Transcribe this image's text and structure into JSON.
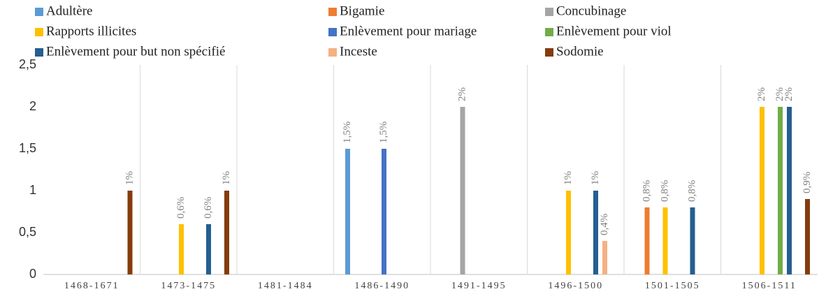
{
  "chart_data": {
    "type": "bar",
    "categories": [
      "1468-1671",
      "1473-1475",
      "1481-1484",
      "1486-1490",
      "1491-1495",
      "1496-1500",
      "1501-1505",
      "1506-1511"
    ],
    "series": [
      {
        "name": "Adultère",
        "color": "#5b9bd5",
        "values": [
          null,
          null,
          null,
          1.5,
          null,
          null,
          null,
          null
        ],
        "value_labels": [
          null,
          null,
          null,
          "1,5%",
          null,
          null,
          null,
          null
        ]
      },
      {
        "name": "Bigamie",
        "color": "#ed7d31",
        "values": [
          null,
          null,
          null,
          null,
          null,
          null,
          0.8,
          null
        ],
        "value_labels": [
          null,
          null,
          null,
          null,
          null,
          null,
          "0,8%",
          null
        ]
      },
      {
        "name": "Concubinage",
        "color": "#a5a5a5",
        "values": [
          null,
          null,
          null,
          null,
          2,
          null,
          null,
          null
        ],
        "value_labels": [
          null,
          null,
          null,
          null,
          "2%",
          null,
          null,
          null
        ]
      },
      {
        "name": "Rapports illicites",
        "color": "#ffc000",
        "values": [
          null,
          0.6,
          null,
          null,
          null,
          1,
          0.8,
          2
        ],
        "value_labels": [
          null,
          "0,6%",
          null,
          null,
          null,
          "1%",
          "0,8%",
          "2%"
        ]
      },
      {
        "name": "Enlèvement pour mariage",
        "color": "#4472c4",
        "values": [
          null,
          null,
          null,
          1.5,
          null,
          null,
          null,
          null
        ],
        "value_labels": [
          null,
          null,
          null,
          "1,5%",
          null,
          null,
          null,
          null
        ]
      },
      {
        "name": "Enlèvement pour viol",
        "color": "#70ad47",
        "values": [
          null,
          null,
          null,
          null,
          null,
          null,
          null,
          2
        ],
        "value_labels": [
          null,
          null,
          null,
          null,
          null,
          null,
          null,
          "2%"
        ]
      },
      {
        "name": "Enlèvement pour but non spécifié",
        "color": "#255e91",
        "values": [
          null,
          0.6,
          null,
          null,
          null,
          1,
          0.8,
          2
        ],
        "value_labels": [
          null,
          "0,6%",
          null,
          null,
          null,
          "1%",
          "0,8%",
          "2%"
        ]
      },
      {
        "name": "Inceste",
        "color": "#f4b183",
        "values": [
          null,
          null,
          null,
          null,
          null,
          0.4,
          null,
          null
        ],
        "value_labels": [
          null,
          null,
          null,
          null,
          null,
          "0,4%",
          null,
          null
        ]
      },
      {
        "name": "Sodomie",
        "color": "#843c0c",
        "values": [
          1,
          1,
          null,
          null,
          null,
          null,
          null,
          0.9
        ],
        "value_labels": [
          "1%",
          "1%",
          null,
          null,
          null,
          null,
          null,
          "0,9%"
        ]
      }
    ],
    "ylim": [
      0,
      2.5
    ],
    "yticks": [
      0,
      {
        "value": 0.5,
        "label": "0,5"
      },
      1,
      {
        "value": 1.5,
        "label": "1,5"
      },
      2,
      {
        "value": 2.5,
        "label": "2,5"
      }
    ],
    "grid": true
  }
}
